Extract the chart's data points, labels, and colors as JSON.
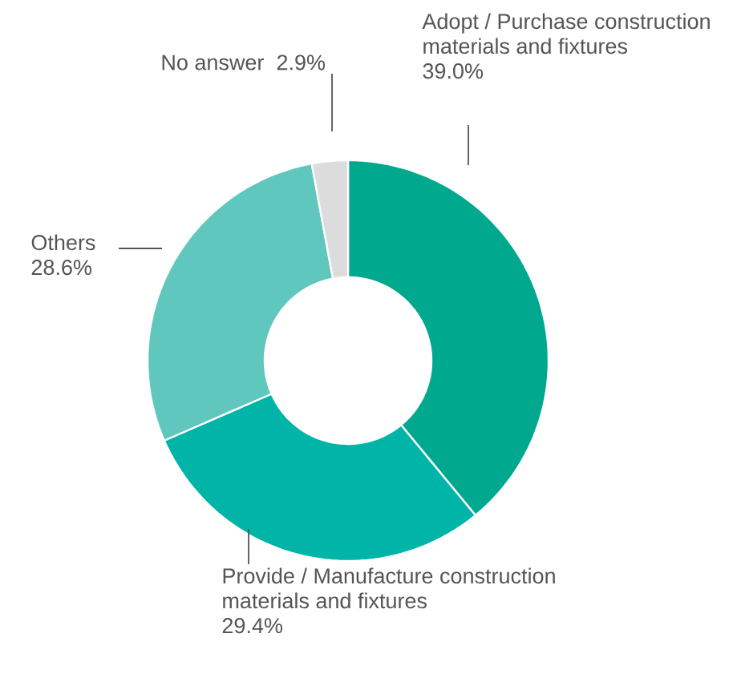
{
  "chart_data": {
    "type": "donut",
    "categories": [
      "Adopt / Purchase construction materials and fixtures",
      "Provide / Manufacture construction materials and fixtures",
      "Others",
      "No answer"
    ],
    "values": [
      39.0,
      29.4,
      28.6,
      2.9
    ],
    "colors": [
      "#00a88e",
      "#00b5a8",
      "#5fc7bd",
      "#dcdcdc"
    ],
    "value_labels": [
      "39.0%",
      "29.4%",
      "28.6%",
      "2.9%"
    ]
  }
}
